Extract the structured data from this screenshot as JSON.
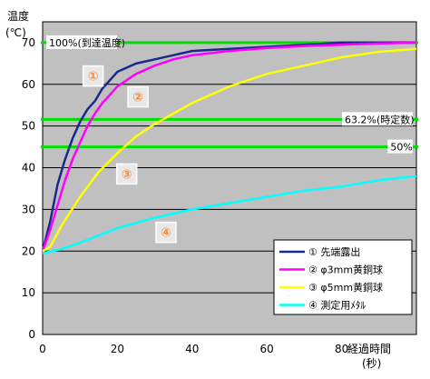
{
  "chart_data": {
    "type": "line",
    "ylabel_line1": "温度",
    "ylabel_line2": "(℃)",
    "xlabel_line1": "経過時間",
    "xlabel_line2": "(秒)",
    "xlim": [
      0,
      100
    ],
    "ylim": [
      0,
      75
    ],
    "x_ticks": [
      0,
      20,
      40,
      60,
      80
    ],
    "y_ticks": [
      0,
      10,
      20,
      30,
      40,
      50,
      60,
      70
    ],
    "grid": true,
    "legend_position": "bottom-right",
    "background": "#c0c0c0",
    "reference_lines": [
      {
        "y": 70,
        "label": "100%(到達温度)",
        "color": "#00e000",
        "label_side": "left"
      },
      {
        "y": 51.6,
        "label": "63.2%(時定数)",
        "color": "#00e000",
        "label_side": "right"
      },
      {
        "y": 45,
        "label": "50%",
        "color": "#00e000",
        "label_side": "right"
      }
    ],
    "series": [
      {
        "name": "① 先端露出",
        "marker": "①",
        "color": "#1a2a8c",
        "x": [
          0,
          2,
          4,
          6,
          8,
          10,
          12,
          14,
          16,
          18,
          20,
          25,
          30,
          35,
          40,
          50,
          60,
          70,
          80,
          90,
          100
        ],
        "y": [
          20,
          27,
          36,
          42,
          47,
          51,
          54,
          56,
          59,
          61,
          63,
          65,
          66,
          67,
          68,
          68.5,
          69,
          69.5,
          70,
          70,
          70
        ]
      },
      {
        "name": "② φ3mm黄銅球",
        "marker": "②",
        "color": "#ff00ff",
        "x": [
          0,
          2,
          4,
          6,
          8,
          10,
          12,
          14,
          16,
          18,
          20,
          25,
          30,
          35,
          40,
          50,
          60,
          70,
          80,
          90,
          100
        ],
        "y": [
          20,
          25,
          31,
          37,
          42,
          46,
          50,
          53,
          55.5,
          57.5,
          59.5,
          62.5,
          64.5,
          66,
          67,
          68,
          68.7,
          69.2,
          69.5,
          69.8,
          70
        ]
      },
      {
        "name": "③ φ5mm黄銅球",
        "marker": "③",
        "color": "#ffff00",
        "x": [
          0,
          2,
          5,
          10,
          15,
          20,
          25,
          30,
          35,
          40,
          45,
          50,
          55,
          60,
          70,
          80,
          90,
          100
        ],
        "y": [
          20,
          21,
          26,
          33,
          39,
          43.5,
          47.5,
          50.5,
          53,
          55.5,
          57.5,
          59.5,
          61,
          62.5,
          64.5,
          66.5,
          67.8,
          68.5
        ]
      },
      {
        "name": "④ 測定用ﾒﾀﾙ",
        "marker": "④",
        "color": "#00ffff",
        "x": [
          0,
          5,
          10,
          20,
          30,
          40,
          50,
          60,
          70,
          80,
          90,
          100
        ],
        "y": [
          19.5,
          20.5,
          22,
          25.5,
          28,
          30,
          31.5,
          33,
          34.5,
          35.5,
          37,
          38
        ]
      }
    ]
  }
}
